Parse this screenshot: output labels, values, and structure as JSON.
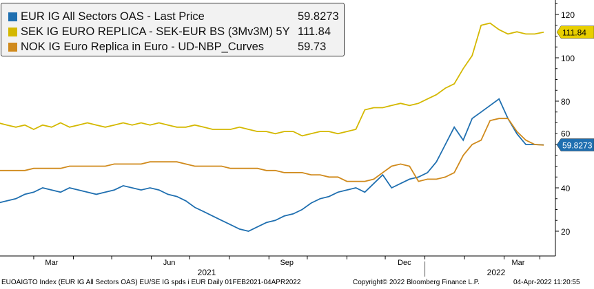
{
  "chart_data": {
    "type": "line",
    "x_start": "2021-02-01",
    "x_end": "2022-04-04",
    "x_step": "weekly",
    "xticks": [
      "Mar",
      "Jun",
      "Sep",
      "Dec",
      "Mar"
    ],
    "years": [
      "2021",
      "2022"
    ],
    "yticks": [
      20,
      40,
      60,
      80,
      100,
      120
    ],
    "ylim": [
      14,
      127
    ],
    "series": [
      {
        "name": "EUR IG All Sectors OAS - Last Price",
        "last": "59.8273",
        "color": "#1f6fb0",
        "values": [
          33,
          34,
          35,
          37,
          38,
          40,
          39,
          38,
          40,
          39,
          38,
          37,
          38,
          39,
          41,
          40,
          39,
          40,
          39,
          37,
          36,
          34,
          31,
          29,
          27,
          25,
          23,
          21,
          20,
          22,
          24,
          25,
          27,
          28,
          30,
          33,
          35,
          36,
          38,
          39,
          40,
          38,
          42,
          46,
          40,
          42,
          44,
          45,
          47,
          52,
          60,
          68,
          62,
          72,
          75,
          78,
          81,
          72,
          65,
          60,
          60,
          59.83
        ]
      },
      {
        "name": "SEK IG EURO REPLICA - SEK-EUR BS (3Mv3M) 5Y",
        "last": "111.84",
        "color": "#d4b800",
        "values": [
          70,
          69,
          68,
          69,
          67,
          69,
          68,
          70,
          68,
          69,
          70,
          69,
          68,
          69,
          70,
          69,
          70,
          69,
          70,
          69,
          68,
          68,
          69,
          68,
          67,
          67,
          67,
          68,
          67,
          66,
          66,
          65,
          66,
          66,
          64,
          65,
          66,
          66,
          65,
          66,
          67,
          76,
          77,
          77,
          78,
          79,
          78,
          79,
          81,
          83,
          86,
          88,
          95,
          101,
          115,
          116,
          113,
          111,
          112,
          111,
          111,
          111.84
        ]
      },
      {
        "name": "NOK IG Euro Replica in Euro - UD-NBP_Curves",
        "last": "59.73",
        "color": "#d08a1c",
        "values": [
          48,
          48,
          48,
          48,
          49,
          49,
          49,
          49,
          50,
          50,
          50,
          50,
          50,
          51,
          51,
          51,
          51,
          52,
          52,
          52,
          52,
          51,
          50,
          50,
          50,
          50,
          49,
          49,
          49,
          49,
          48,
          48,
          47,
          47,
          47,
          46,
          46,
          45,
          45,
          43,
          43,
          43,
          44,
          47,
          50,
          51,
          50,
          43,
          44,
          44,
          45,
          47,
          55,
          60,
          62,
          71,
          72,
          72,
          66,
          62,
          60,
          59.73
        ]
      }
    ]
  },
  "footer": {
    "left": "EUOAIGTO Index (EUR IG All Sectors OAS) EU/SE IG spds i EUR  Daily 01FEB2021-04APR2022",
    "copyright": "Copyright© 2022 Bloomberg Finance L.P.",
    "timestamp": "04-Apr-2022 11:20:55"
  }
}
